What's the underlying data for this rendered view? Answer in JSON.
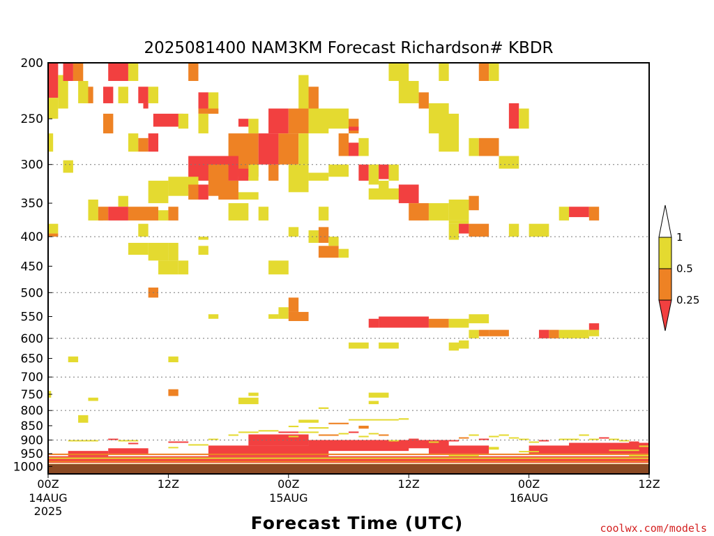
{
  "chart_data": {
    "type": "heatmap",
    "title": "2025081400 NAM3KM Forecast Richardson# KBDR",
    "xlabel": "Forecast Time (UTC)",
    "ylabel": "",
    "credit": "coolwx.com/models",
    "y_scale": "log",
    "ylim": [
      1030,
      200
    ],
    "xlim": [
      0,
      60
    ],
    "y_ticks": [
      200,
      250,
      300,
      350,
      400,
      450,
      500,
      550,
      600,
      650,
      700,
      750,
      800,
      850,
      900,
      950,
      1000
    ],
    "y_tick_labels": [
      "200",
      "250",
      "300",
      "350",
      "400",
      "450",
      "500",
      "550",
      "600",
      "650",
      "700",
      "750",
      "800",
      "850",
      "900",
      "950",
      "1000"
    ],
    "gridlines_at": [
      300,
      400,
      500,
      600,
      700,
      800,
      900
    ],
    "x_ticks": [
      {
        "hour": 0,
        "time": "00Z",
        "date": "14AUG",
        "year": "2025"
      },
      {
        "hour": 12,
        "time": "12Z",
        "date": "",
        "year": ""
      },
      {
        "hour": 24,
        "time": "00Z",
        "date": "15AUG",
        "year": ""
      },
      {
        "hour": 36,
        "time": "12Z",
        "date": "",
        "year": ""
      },
      {
        "hour": 48,
        "time": "00Z",
        "date": "16AUG",
        "year": ""
      },
      {
        "hour": 60,
        "time": "12Z",
        "date": "",
        "year": ""
      }
    ],
    "colorbar": {
      "labels": [
        "1",
        "0.5",
        "0.25"
      ],
      "bins": [
        {
          "range": "<0.25",
          "color": "#f24040"
        },
        {
          "range": "0.25-0.5",
          "color": "#ee8224"
        },
        {
          "range": "0.5-1",
          "color": "#e4da30"
        },
        {
          "range": ">1",
          "color": "#ffffff"
        }
      ]
    },
    "ground_color": "#8b4a24",
    "cells": [
      [
        0,
        200,
        1,
        230,
        "r"
      ],
      [
        0,
        230,
        1,
        250,
        "y"
      ],
      [
        1,
        210,
        2,
        240,
        "y"
      ],
      [
        1.5,
        200,
        2.5,
        215,
        "r"
      ],
      [
        2.5,
        200,
        3.5,
        215,
        "o"
      ],
      [
        3.5,
        220,
        4.5,
        235,
        "o"
      ],
      [
        3,
        215,
        4,
        235,
        "y"
      ],
      [
        5.5,
        220,
        6.5,
        235,
        "r"
      ],
      [
        6,
        200,
        8,
        215,
        "r"
      ],
      [
        8,
        200,
        9,
        215,
        "y"
      ],
      [
        7,
        220,
        8,
        235,
        "y"
      ],
      [
        9,
        220,
        10,
        235,
        "r"
      ],
      [
        10,
        220,
        11,
        235,
        "y"
      ],
      [
        9.5,
        235,
        10,
        240,
        "r"
      ],
      [
        14,
        200,
        15,
        215,
        "o"
      ],
      [
        15,
        225,
        16,
        240,
        "r"
      ],
      [
        16,
        225,
        17,
        245,
        "y"
      ],
      [
        15,
        240,
        17,
        245,
        "o"
      ],
      [
        5.5,
        245,
        6.5,
        265,
        "o"
      ],
      [
        10.5,
        245,
        13.5,
        258,
        "r"
      ],
      [
        13,
        245,
        14,
        260,
        "y"
      ],
      [
        15,
        245,
        16,
        265,
        "y"
      ],
      [
        19,
        250,
        20,
        258,
        "r"
      ],
      [
        20,
        250,
        21,
        265,
        "y"
      ],
      [
        22,
        240,
        24,
        265,
        "r"
      ],
      [
        24,
        240,
        26,
        265,
        "o"
      ],
      [
        26,
        240,
        28,
        265,
        "y"
      ],
      [
        25,
        210,
        26,
        240,
        "y"
      ],
      [
        26,
        220,
        27,
        240,
        "o"
      ],
      [
        27,
        240,
        30,
        260,
        "y"
      ],
      [
        30,
        250,
        31,
        265,
        "o"
      ],
      [
        30,
        258,
        31,
        262,
        "r"
      ],
      [
        34,
        200,
        36,
        215,
        "y"
      ],
      [
        35,
        215,
        37,
        235,
        "y"
      ],
      [
        37,
        225,
        38,
        240,
        "o"
      ],
      [
        38,
        235,
        40,
        265,
        "y"
      ],
      [
        39,
        245,
        41,
        285,
        "y"
      ],
      [
        39,
        200,
        40,
        215,
        "y"
      ],
      [
        43,
        200,
        44,
        215,
        "o"
      ],
      [
        44,
        200,
        45,
        215,
        "y"
      ],
      [
        46,
        235,
        47,
        260,
        "r"
      ],
      [
        47,
        240,
        48,
        260,
        "y"
      ],
      [
        60,
        200,
        61,
        215,
        "y"
      ],
      [
        60,
        245,
        61,
        260,
        "y"
      ],
      [
        8,
        265,
        9,
        285,
        "y"
      ],
      [
        9,
        270,
        10,
        285,
        "o"
      ],
      [
        10,
        265,
        11,
        285,
        "r"
      ],
      [
        0,
        265,
        0.5,
        285,
        "y"
      ],
      [
        18,
        265,
        21,
        315,
        "o"
      ],
      [
        21,
        265,
        23,
        300,
        "r"
      ],
      [
        23,
        265,
        25,
        300,
        "o"
      ],
      [
        25,
        265,
        26,
        300,
        "y"
      ],
      [
        29,
        265,
        30,
        290,
        "o"
      ],
      [
        30,
        275,
        31,
        290,
        "r"
      ],
      [
        31,
        270,
        32,
        290,
        "y"
      ],
      [
        42,
        270,
        43,
        290,
        "y"
      ],
      [
        43,
        270,
        45,
        290,
        "o"
      ],
      [
        45,
        290,
        47,
        305,
        "y"
      ],
      [
        1.5,
        295,
        2.5,
        310,
        "y"
      ],
      [
        14,
        290,
        19,
        320,
        "r"
      ],
      [
        12,
        315,
        15,
        330,
        "y"
      ],
      [
        16,
        300,
        18,
        340,
        "o"
      ],
      [
        19,
        305,
        20,
        320,
        "r"
      ],
      [
        20,
        300,
        21,
        320,
        "y"
      ],
      [
        22,
        300,
        23,
        320,
        "o"
      ],
      [
        24,
        300,
        26,
        335,
        "y"
      ],
      [
        26,
        310,
        28,
        320,
        "y"
      ],
      [
        28,
        300,
        30,
        315,
        "y"
      ],
      [
        31,
        300,
        32,
        320,
        "r"
      ],
      [
        32,
        300,
        33,
        325,
        "y"
      ],
      [
        33,
        300,
        34,
        318,
        "r"
      ],
      [
        34,
        300,
        35,
        320,
        "y"
      ],
      [
        10,
        320,
        12,
        350,
        "y"
      ],
      [
        12,
        320,
        14,
        340,
        "y"
      ],
      [
        14,
        325,
        15,
        345,
        "o"
      ],
      [
        15,
        325,
        16,
        345,
        "r"
      ],
      [
        17,
        320,
        19,
        345,
        "o"
      ],
      [
        19,
        335,
        21,
        345,
        "y"
      ],
      [
        32,
        330,
        36,
        345,
        "y"
      ],
      [
        35,
        325,
        37,
        350,
        "r"
      ],
      [
        33,
        320,
        34,
        340,
        "y"
      ],
      [
        7,
        340,
        8,
        355,
        "y"
      ],
      [
        4,
        345,
        5,
        375,
        "y"
      ],
      [
        5,
        360,
        5.5,
        375,
        "y"
      ],
      [
        5,
        355,
        6,
        375,
        "o"
      ],
      [
        6,
        355,
        8,
        375,
        "r"
      ],
      [
        8,
        355,
        11,
        375,
        "o"
      ],
      [
        11,
        360,
        12,
        375,
        "y"
      ],
      [
        12,
        355,
        13,
        375,
        "o"
      ],
      [
        18,
        350,
        20,
        375,
        "y"
      ],
      [
        21,
        355,
        22,
        375,
        "y"
      ],
      [
        27,
        355,
        28,
        375,
        "y"
      ],
      [
        36,
        350,
        38,
        375,
        "o"
      ],
      [
        38,
        350,
        40,
        375,
        "y"
      ],
      [
        40,
        345,
        42,
        375,
        "y"
      ],
      [
        40,
        375,
        42,
        380,
        "y"
      ],
      [
        42,
        340,
        43,
        360,
        "o"
      ],
      [
        51,
        355,
        52,
        375,
        "y"
      ],
      [
        52,
        355,
        54,
        370,
        "r"
      ],
      [
        54,
        355,
        55,
        375,
        "o"
      ],
      [
        0,
        380,
        1,
        395,
        "y"
      ],
      [
        0,
        395,
        1,
        400,
        "o"
      ],
      [
        9,
        380,
        10,
        400,
        "y"
      ],
      [
        15,
        400,
        16,
        405,
        "y"
      ],
      [
        24,
        385,
        25,
        400,
        "y"
      ],
      [
        26,
        390,
        27,
        410,
        "y"
      ],
      [
        27,
        385,
        28,
        410,
        "o"
      ],
      [
        28,
        400,
        29,
        415,
        "y"
      ],
      [
        40,
        380,
        41,
        405,
        "y"
      ],
      [
        41,
        380,
        42,
        395,
        "r"
      ],
      [
        42,
        380,
        44,
        400,
        "o"
      ],
      [
        46,
        380,
        47,
        400,
        "y"
      ],
      [
        48,
        380,
        50,
        400,
        "y"
      ],
      [
        8,
        410,
        10,
        430,
        "y"
      ],
      [
        10,
        410,
        12,
        440,
        "y"
      ],
      [
        12,
        410,
        13,
        440,
        "y"
      ],
      [
        15,
        415,
        16,
        430,
        "y"
      ],
      [
        27,
        415,
        29,
        435,
        "o"
      ],
      [
        29,
        420,
        30,
        435,
        "y"
      ],
      [
        11,
        440,
        13,
        465,
        "y"
      ],
      [
        13,
        440,
        14,
        465,
        "y"
      ],
      [
        22,
        440,
        24,
        465,
        "y"
      ],
      [
        10,
        490,
        11,
        510,
        "o"
      ],
      [
        16,
        545,
        17,
        555,
        "y"
      ],
      [
        22,
        545,
        23,
        555,
        "y"
      ],
      [
        23,
        530,
        24,
        555,
        "y"
      ],
      [
        24,
        510,
        25,
        540,
        "o"
      ],
      [
        24,
        540,
        26,
        560,
        "o"
      ],
      [
        32,
        555,
        33,
        575,
        "r"
      ],
      [
        33,
        550,
        38,
        575,
        "r"
      ],
      [
        38,
        555,
        40,
        575,
        "o"
      ],
      [
        40,
        555,
        42,
        575,
        "y"
      ],
      [
        42,
        545,
        44,
        565,
        "y"
      ],
      [
        42,
        580,
        43,
        600,
        "y"
      ],
      [
        43,
        580,
        44,
        595,
        "o"
      ],
      [
        44,
        580,
        46,
        595,
        "o"
      ],
      [
        49,
        580,
        50,
        600,
        "r"
      ],
      [
        50,
        580,
        51,
        600,
        "o"
      ],
      [
        51,
        580,
        54,
        600,
        "y"
      ],
      [
        54,
        580,
        55,
        595,
        "y"
      ],
      [
        54,
        565,
        55,
        580,
        "r"
      ],
      [
        30,
        610,
        32,
        625,
        "y"
      ],
      [
        33,
        610,
        35,
        625,
        "y"
      ],
      [
        40,
        610,
        41,
        630,
        "y"
      ],
      [
        41,
        605,
        42,
        625,
        "y"
      ],
      [
        2,
        645,
        3,
        660,
        "y"
      ],
      [
        12,
        645,
        13,
        660,
        "y"
      ],
      [
        0,
        740,
        0.3,
        760,
        "y"
      ],
      [
        12,
        735,
        13,
        755,
        "o"
      ],
      [
        4,
        760,
        5,
        770,
        "y"
      ],
      [
        19,
        760,
        21,
        780,
        "y"
      ],
      [
        20,
        745,
        21,
        755,
        "y"
      ],
      [
        32,
        745,
        34,
        760,
        "y"
      ],
      [
        32,
        770,
        33,
        780,
        "y"
      ],
      [
        27,
        790,
        28,
        795,
        "y"
      ],
      [
        3,
        815,
        4,
        840,
        "y"
      ],
      [
        25,
        830,
        27,
        840,
        "y"
      ],
      [
        28,
        840,
        30,
        845,
        "o"
      ],
      [
        35,
        825,
        36,
        830,
        "y"
      ],
      [
        30,
        828,
        35,
        832,
        "y"
      ],
      [
        24,
        850,
        25,
        855,
        "y"
      ],
      [
        26,
        855,
        28,
        860,
        "y"
      ],
      [
        31,
        850,
        32,
        860,
        "o"
      ]
    ],
    "bands": [
      [
        0,
        960,
        61,
        1000,
        "r"
      ],
      [
        16,
        920,
        28,
        960,
        "r"
      ],
      [
        20,
        880,
        26,
        920,
        "r"
      ],
      [
        26,
        900,
        36,
        940,
        "r"
      ],
      [
        32,
        900,
        40,
        930,
        "r"
      ],
      [
        38,
        920,
        44,
        950,
        "r"
      ],
      [
        48,
        920,
        60,
        950,
        "r"
      ],
      [
        52,
        910,
        60,
        930,
        "r"
      ],
      [
        6,
        930,
        10,
        950,
        "r"
      ],
      [
        2,
        940,
        6,
        960,
        "r"
      ]
    ],
    "strips": [
      [
        0,
        950,
        61,
        955,
        "o"
      ],
      [
        0,
        965,
        61,
        968,
        "y"
      ],
      [
        0,
        978,
        61,
        981,
        "o"
      ],
      [
        0,
        988,
        61,
        991,
        "y"
      ],
      [
        2,
        900,
        5,
        905,
        "y"
      ],
      [
        6,
        895,
        7,
        900,
        "r"
      ],
      [
        7,
        900,
        9,
        905,
        "y"
      ],
      [
        8,
        910,
        9,
        915,
        "r"
      ],
      [
        12,
        925,
        13,
        930,
        "y"
      ],
      [
        12,
        905,
        14,
        910,
        "r"
      ],
      [
        14,
        915,
        16,
        920,
        "y"
      ],
      [
        16,
        895,
        17,
        900,
        "y"
      ],
      [
        18,
        880,
        19,
        885,
        "y"
      ],
      [
        19,
        870,
        21,
        875,
        "y"
      ],
      [
        21,
        865,
        23,
        870,
        "y"
      ],
      [
        23,
        870,
        25,
        875,
        "r"
      ],
      [
        24,
        885,
        25,
        890,
        "y"
      ],
      [
        25,
        870,
        27,
        875,
        "y"
      ],
      [
        27,
        880,
        29,
        885,
        "o"
      ],
      [
        29,
        875,
        30,
        880,
        "y"
      ],
      [
        30,
        870,
        31,
        875,
        "r"
      ],
      [
        31,
        885,
        32,
        890,
        "y"
      ],
      [
        32,
        875,
        33,
        880,
        "y"
      ],
      [
        33,
        880,
        34,
        885,
        "o"
      ],
      [
        34,
        900,
        35,
        905,
        "y"
      ],
      [
        36,
        895,
        37,
        900,
        "r"
      ],
      [
        38,
        905,
        39,
        910,
        "y"
      ],
      [
        40,
        900,
        41,
        905,
        "r"
      ],
      [
        41,
        890,
        42,
        895,
        "o"
      ],
      [
        42,
        880,
        43,
        885,
        "y"
      ],
      [
        43,
        895,
        44,
        900,
        "r"
      ],
      [
        44,
        885,
        45,
        890,
        "y"
      ],
      [
        45,
        880,
        46,
        885,
        "y"
      ],
      [
        46,
        890,
        47,
        895,
        "y"
      ],
      [
        47,
        895,
        48,
        900,
        "y"
      ],
      [
        48,
        905,
        49,
        910,
        "y"
      ],
      [
        49,
        900,
        50,
        905,
        "r"
      ],
      [
        51,
        895,
        52,
        900,
        "y"
      ],
      [
        52,
        895,
        53,
        900,
        "y"
      ],
      [
        53,
        880,
        54,
        885,
        "y"
      ],
      [
        54,
        895,
        55,
        900,
        "y"
      ],
      [
        55,
        890,
        56,
        895,
        "r"
      ],
      [
        56,
        895,
        57,
        900,
        "y"
      ],
      [
        57,
        900,
        58,
        905,
        "y"
      ],
      [
        58,
        905,
        59,
        910,
        "r"
      ],
      [
        59,
        920,
        60,
        925,
        "y"
      ],
      [
        44,
        925,
        45,
        935,
        "y"
      ],
      [
        47,
        940,
        49,
        945,
        "y"
      ],
      [
        56,
        935,
        59,
        940,
        "y"
      ],
      [
        58,
        955,
        60,
        960,
        "y"
      ],
      [
        50,
        990,
        52,
        993,
        "y"
      ],
      [
        40,
        955,
        43,
        958,
        "y"
      ]
    ],
    "color_key": {
      "r": "#f24040",
      "o": "#ee8224",
      "y": "#e4da30"
    }
  }
}
